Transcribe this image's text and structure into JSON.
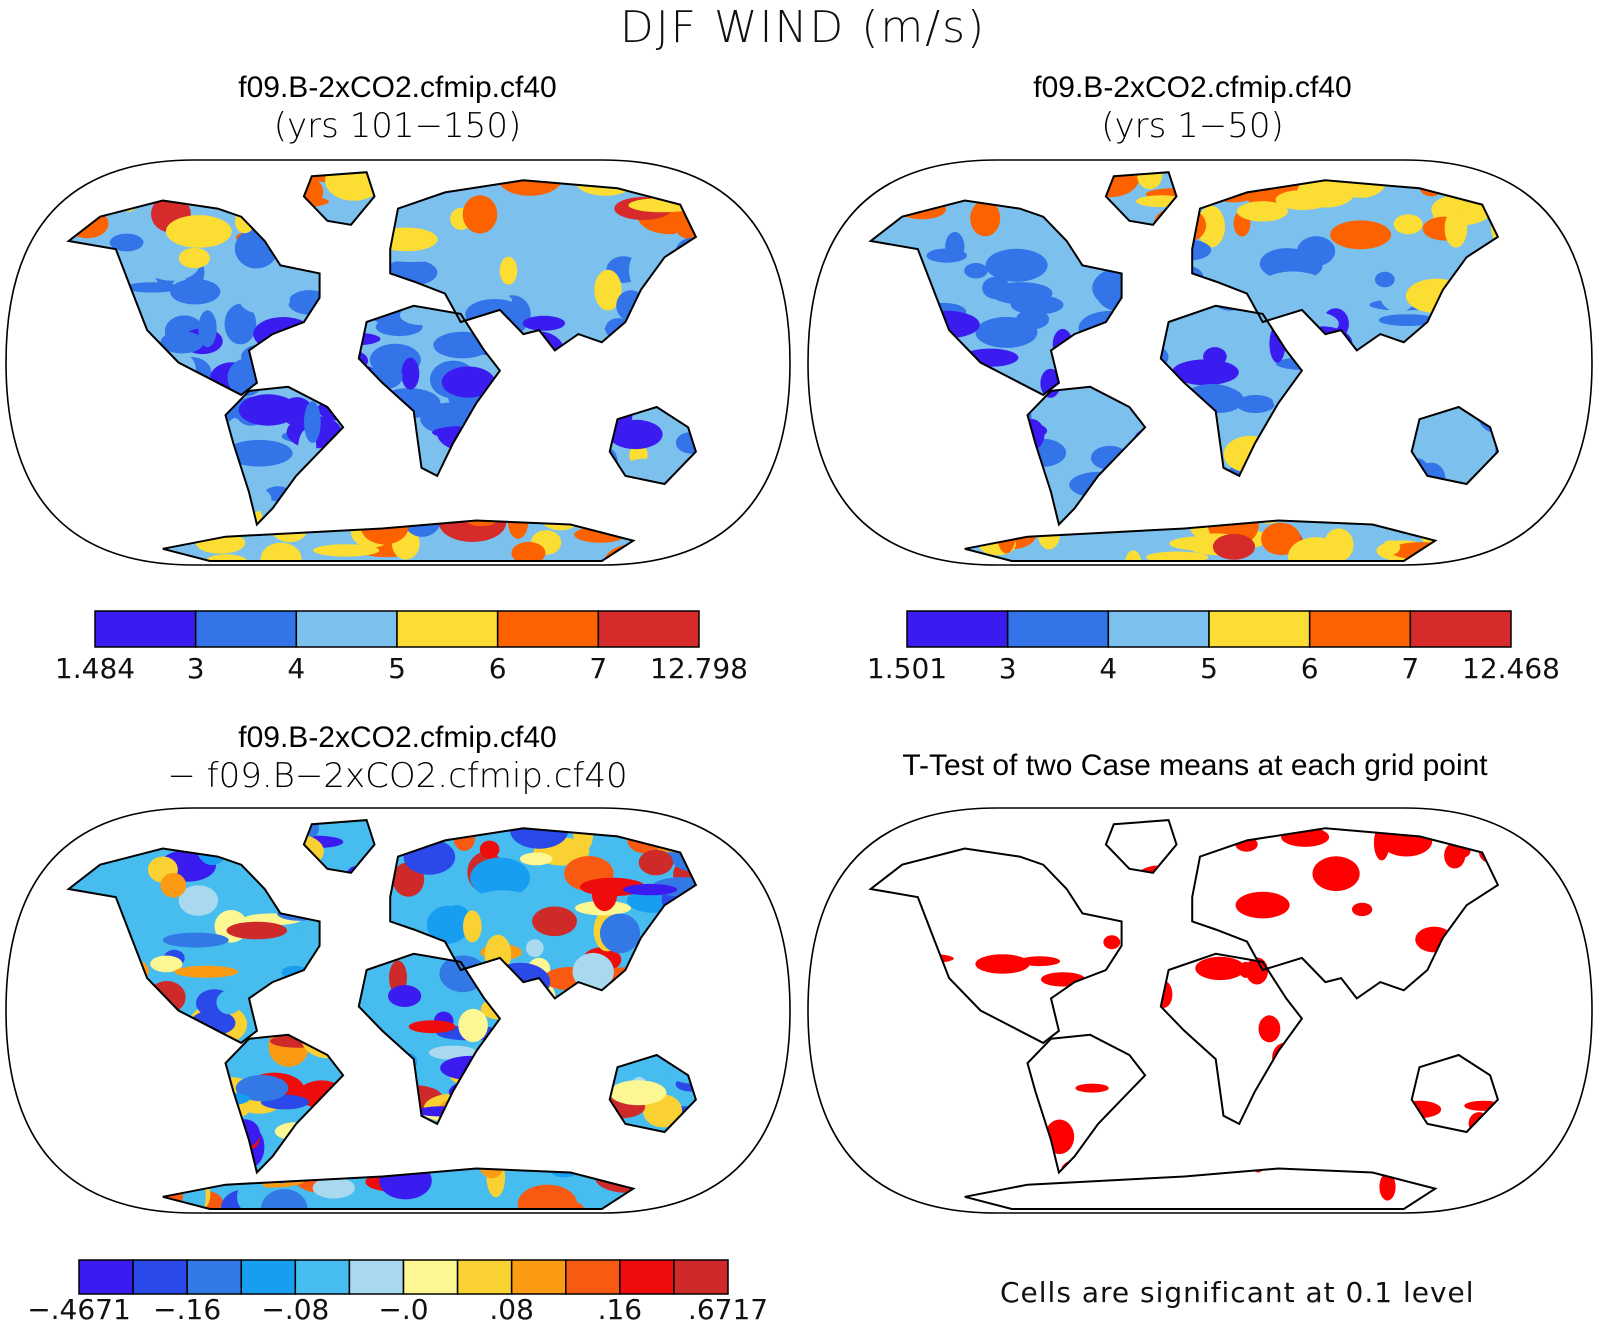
{
  "main_title": "DJF WIND (m/s)",
  "panels": {
    "top_left": {
      "title_line1": "f09.B-2xCO2.cfmip.cf40",
      "title_line2": "(yrs 101−150)",
      "colorbar": {
        "colors": [
          "#3b1cf0",
          "#3374e8",
          "#7cc1ee",
          "#fbdd34",
          "#fc6200",
          "#d72a2a"
        ],
        "labels": [
          "1.484",
          "3",
          "4",
          "5",
          "6",
          "7",
          "12.798"
        ]
      }
    },
    "top_right": {
      "title_line1": "f09.B-2xCO2.cfmip.cf40",
      "title_line2": "(yrs 1−50)",
      "colorbar": {
        "colors": [
          "#3b1cf0",
          "#3374e8",
          "#7cc1ee",
          "#fbdd34",
          "#fc6200",
          "#d72a2a"
        ],
        "labels": [
          "1.501",
          "3",
          "4",
          "5",
          "6",
          "7",
          "12.468"
        ]
      }
    },
    "bottom_left": {
      "title_line1": "f09.B-2xCO2.cfmip.cf40",
      "title_line2": "− f09.B−2xCO2.cfmip.cf40",
      "colorbar": {
        "colors": [
          "#3b1cf0",
          "#2a49e8",
          "#3379e6",
          "#179ef0",
          "#47bcef",
          "#a9d9ef",
          "#fdf793",
          "#fad132",
          "#fa9b13",
          "#f95a12",
          "#ee0c0c",
          "#cf2a2a"
        ],
        "labels": [
          "−.4671",
          "−.16",
          "−.08",
          "−.0",
          ".08",
          ".16",
          ".6717"
        ]
      }
    },
    "bottom_right": {
      "title_line1": "T-Test of two Case means at each grid point",
      "note": "Cells are significant at 0.1 level",
      "significant_color": "#ff0000"
    }
  },
  "colors": {
    "land_outline": "#000000",
    "map_border": "#000000",
    "background": "#ffffff"
  }
}
